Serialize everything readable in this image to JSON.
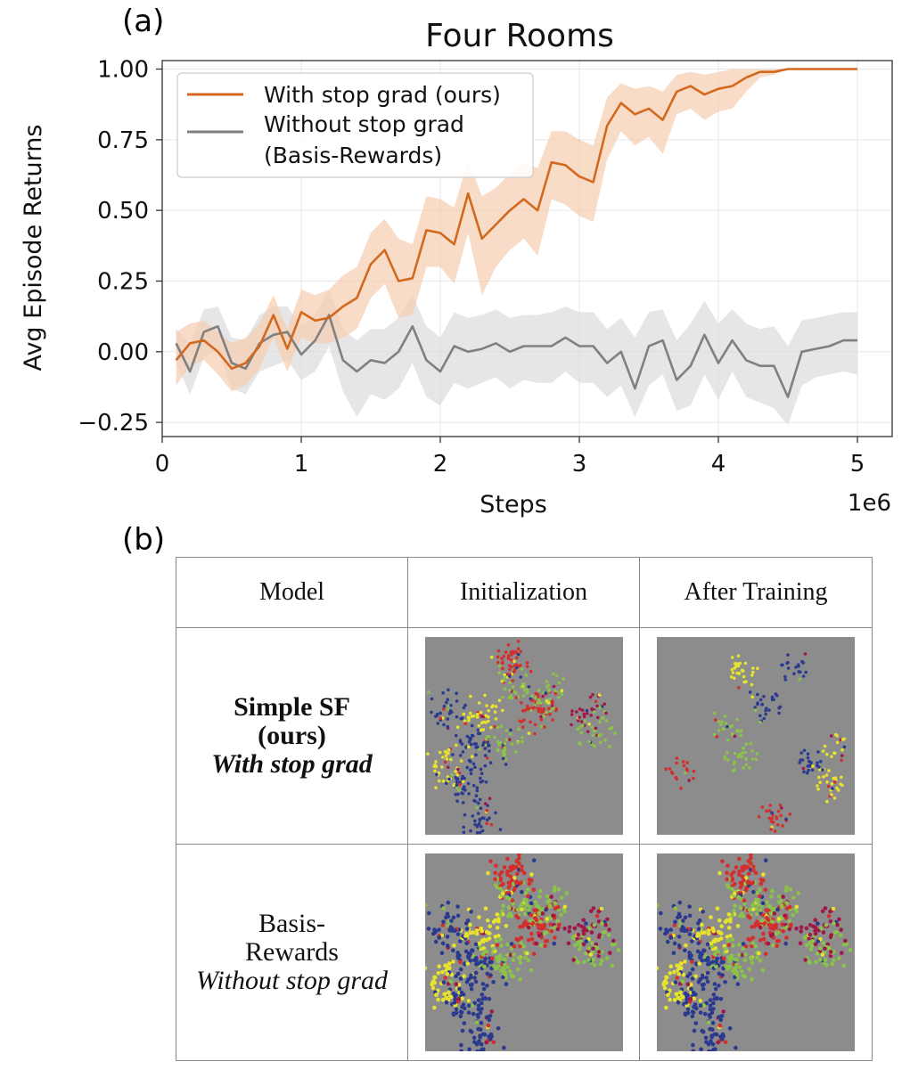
{
  "panel_a_label": "(a)",
  "panel_b_label": "(b)",
  "chart_data": {
    "type": "line",
    "title": "Four Rooms",
    "xlabel": "Steps",
    "ylabel": "Avg Episode Returns",
    "x_offset_label": "1e6",
    "xlim": [
      0,
      5.25
    ],
    "ylim": [
      -0.3,
      1.03
    ],
    "xticks": [
      0,
      1,
      2,
      3,
      4,
      5
    ],
    "yticks": [
      -0.25,
      0.0,
      0.25,
      0.5,
      0.75,
      1.0
    ],
    "xtick_labels": [
      "0",
      "1",
      "2",
      "3",
      "4",
      "5"
    ],
    "ytick_labels": [
      "−0.25",
      "0.00",
      "0.25",
      "0.50",
      "0.75",
      "1.00"
    ],
    "grid": true,
    "legend_position": "top-left",
    "x": [
      0.1,
      0.2,
      0.3,
      0.4,
      0.5,
      0.6,
      0.7,
      0.8,
      0.9,
      1.0,
      1.1,
      1.2,
      1.3,
      1.4,
      1.5,
      1.6,
      1.7,
      1.8,
      1.9,
      2.0,
      2.1,
      2.2,
      2.3,
      2.4,
      2.5,
      2.6,
      2.7,
      2.8,
      2.9,
      3.0,
      3.1,
      3.2,
      3.3,
      3.4,
      3.5,
      3.6,
      3.7,
      3.8,
      3.9,
      4.0,
      4.1,
      4.2,
      4.3,
      4.4,
      4.5,
      4.6,
      4.7,
      4.8,
      4.9,
      5.0
    ],
    "series": [
      {
        "name": "With stop grad (ours)",
        "color": "#d2691e",
        "band_color": "#f5cdb0",
        "values": [
          -0.03,
          0.03,
          0.04,
          0.0,
          -0.06,
          -0.04,
          0.02,
          0.13,
          0.01,
          0.14,
          0.11,
          0.12,
          0.16,
          0.19,
          0.31,
          0.36,
          0.25,
          0.26,
          0.43,
          0.42,
          0.38,
          0.56,
          0.4,
          0.45,
          0.5,
          0.54,
          0.5,
          0.67,
          0.66,
          0.62,
          0.6,
          0.8,
          0.88,
          0.84,
          0.86,
          0.82,
          0.92,
          0.94,
          0.91,
          0.93,
          0.94,
          0.97,
          0.99,
          0.99,
          1.0,
          1.0,
          1.0,
          1.0,
          1.0,
          1.0
        ],
        "upper": [
          0.07,
          0.1,
          0.11,
          0.07,
          0.03,
          0.05,
          0.1,
          0.2,
          0.08,
          0.22,
          0.2,
          0.22,
          0.27,
          0.3,
          0.42,
          0.47,
          0.4,
          0.38,
          0.55,
          0.54,
          0.51,
          0.68,
          0.55,
          0.58,
          0.63,
          0.67,
          0.65,
          0.78,
          0.78,
          0.75,
          0.73,
          0.9,
          0.95,
          0.93,
          0.94,
          0.92,
          0.98,
          0.99,
          0.98,
          0.99,
          1.0,
          1.0,
          1.0,
          1.0,
          1.0,
          1.0,
          1.0,
          1.0,
          1.0,
          1.0
        ],
        "lower": [
          -0.12,
          -0.05,
          -0.03,
          -0.08,
          -0.14,
          -0.12,
          -0.06,
          0.05,
          -0.07,
          0.05,
          0.03,
          0.03,
          0.05,
          0.08,
          0.19,
          0.24,
          0.12,
          0.13,
          0.3,
          0.3,
          0.24,
          0.42,
          0.2,
          0.3,
          0.36,
          0.4,
          0.34,
          0.54,
          0.52,
          0.48,
          0.46,
          0.68,
          0.78,
          0.73,
          0.76,
          0.7,
          0.84,
          0.86,
          0.82,
          0.85,
          0.86,
          0.92,
          0.97,
          0.98,
          1.0,
          1.0,
          1.0,
          1.0,
          1.0,
          1.0
        ]
      },
      {
        "name": "Without stop grad\n(Basis-Rewards)",
        "color": "#808080",
        "band_color": "#dcdcdc",
        "values": [
          0.03,
          -0.07,
          0.07,
          0.09,
          -0.04,
          -0.06,
          0.03,
          0.06,
          0.07,
          -0.01,
          0.04,
          0.13,
          -0.03,
          -0.07,
          -0.03,
          -0.04,
          0.0,
          0.09,
          -0.03,
          -0.07,
          0.02,
          0.0,
          0.01,
          0.03,
          0.0,
          0.02,
          0.02,
          0.02,
          0.05,
          0.02,
          0.02,
          -0.04,
          0.0,
          -0.13,
          0.02,
          0.04,
          -0.1,
          -0.05,
          0.06,
          -0.04,
          0.04,
          -0.03,
          -0.05,
          -0.05,
          -0.16,
          0.0,
          0.01,
          0.02,
          0.04,
          0.04
        ],
        "upper": [
          0.08,
          0.03,
          0.15,
          0.16,
          0.05,
          0.04,
          0.13,
          0.16,
          0.16,
          0.09,
          0.13,
          0.22,
          0.08,
          0.04,
          0.08,
          0.08,
          0.12,
          0.2,
          0.09,
          0.05,
          0.14,
          0.12,
          0.13,
          0.15,
          0.12,
          0.13,
          0.13,
          0.14,
          0.16,
          0.14,
          0.14,
          0.08,
          0.12,
          0.05,
          0.14,
          0.15,
          0.04,
          0.1,
          0.18,
          0.1,
          0.15,
          0.1,
          0.08,
          0.09,
          0.02,
          0.11,
          0.12,
          0.13,
          0.14,
          0.14
        ],
        "lower": [
          -0.04,
          -0.15,
          -0.02,
          0.01,
          -0.13,
          -0.15,
          -0.07,
          -0.05,
          -0.03,
          -0.1,
          -0.07,
          0.02,
          -0.14,
          -0.23,
          -0.15,
          -0.17,
          -0.13,
          -0.04,
          -0.16,
          -0.19,
          -0.11,
          -0.13,
          -0.11,
          -0.09,
          -0.13,
          -0.1,
          -0.11,
          -0.11,
          -0.07,
          -0.11,
          -0.11,
          -0.16,
          -0.12,
          -0.23,
          -0.12,
          -0.08,
          -0.21,
          -0.19,
          -0.08,
          -0.17,
          -0.07,
          -0.16,
          -0.18,
          -0.2,
          -0.26,
          -0.12,
          -0.09,
          -0.08,
          -0.07,
          -0.08
        ]
      }
    ]
  },
  "table": {
    "headers": [
      "Model",
      "Initialization",
      "After Training"
    ],
    "rows": [
      {
        "line1": "Simple SF",
        "line2": "(ours)",
        "line3": "With stop grad"
      },
      {
        "line1": "Basis-",
        "line2": "Rewards",
        "line3": "Without stop grad"
      }
    ]
  },
  "scatter_colors": [
    "#2b3a8f",
    "#e6e22e",
    "#8bc34a",
    "#d32f2f",
    "#a0184a"
  ]
}
